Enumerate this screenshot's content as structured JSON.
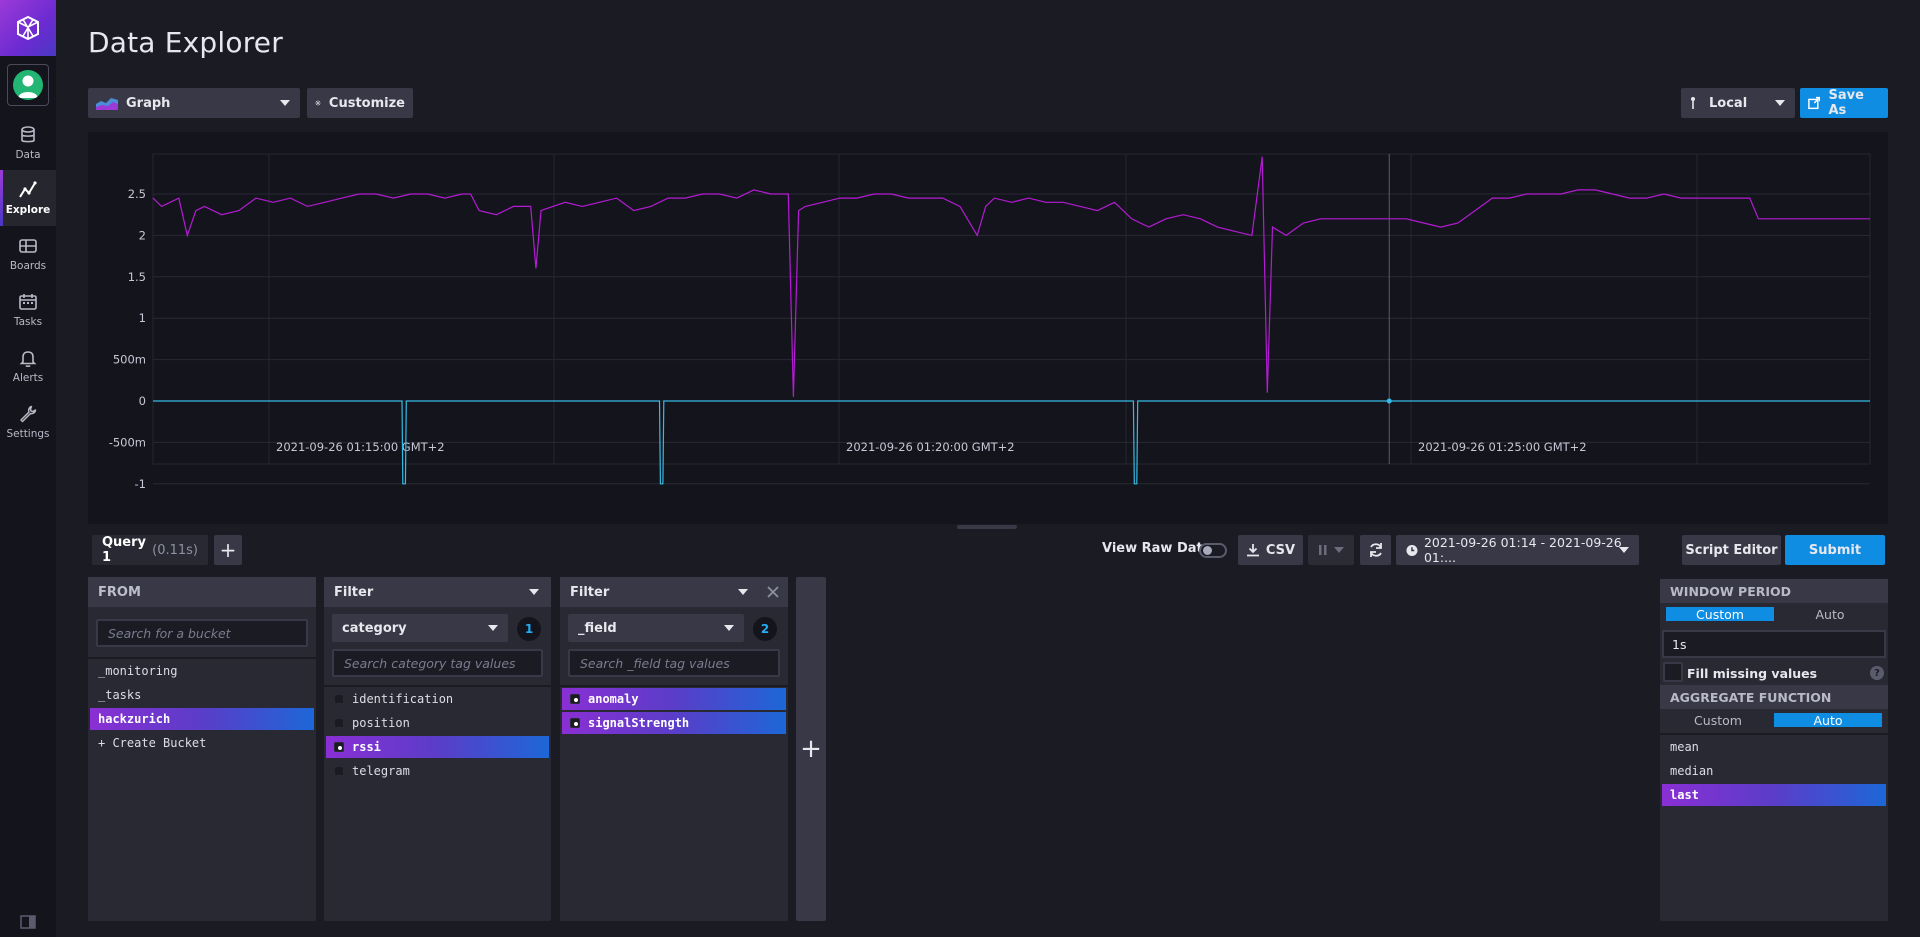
{
  "sidebar": {
    "items": [
      {
        "label": "Data",
        "icon": "database-icon"
      },
      {
        "label": "Explore",
        "icon": "graph-line-icon",
        "active": true
      },
      {
        "label": "Boards",
        "icon": "dashboard-grid-icon"
      },
      {
        "label": "Tasks",
        "icon": "calendar-icon"
      },
      {
        "label": "Alerts",
        "icon": "bell-icon"
      },
      {
        "label": "Settings",
        "icon": "wrench-icon"
      }
    ]
  },
  "header": {
    "title": "Data Explorer"
  },
  "toolbar": {
    "visualization": "Graph",
    "customize": "Customize",
    "timezone": "Local",
    "save_as": "Save As"
  },
  "chart_data": {
    "type": "line",
    "y_ticks": [
      "2.5",
      "2",
      "1.5",
      "1",
      "500m",
      "0",
      "-500m",
      "-1"
    ],
    "ylim": [
      -1,
      2.5
    ],
    "x_ticks": [
      "2021-09-26 01:15:00 GMT+2",
      "2021-09-26 01:20:00 GMT+2",
      "2021-09-26 01:25:00 GMT+2"
    ],
    "series": [
      {
        "color": "#b41bd4",
        "points": [
          [
            0,
            2.45
          ],
          [
            0.5,
            2.35
          ],
          [
            1,
            2.4
          ],
          [
            1.5,
            2.45
          ],
          [
            2,
            2.0
          ],
          [
            2.5,
            2.3
          ],
          [
            3,
            2.35
          ],
          [
            4,
            2.25
          ],
          [
            5,
            2.3
          ],
          [
            6,
            2.45
          ],
          [
            7,
            2.4
          ],
          [
            8,
            2.45
          ],
          [
            9,
            2.35
          ],
          [
            10,
            2.4
          ],
          [
            11,
            2.45
          ],
          [
            12,
            2.5
          ],
          [
            13,
            2.5
          ],
          [
            14,
            2.45
          ],
          [
            15,
            2.5
          ],
          [
            16,
            2.5
          ],
          [
            17,
            2.45
          ],
          [
            18,
            2.5
          ],
          [
            18.5,
            2.5
          ],
          [
            19,
            2.3
          ],
          [
            20,
            2.25
          ],
          [
            21,
            2.35
          ],
          [
            22,
            2.35
          ],
          [
            22.3,
            1.6
          ],
          [
            22.6,
            2.3
          ],
          [
            24,
            2.4
          ],
          [
            25,
            2.35
          ],
          [
            26,
            2.4
          ],
          [
            27,
            2.45
          ],
          [
            28,
            2.3
          ],
          [
            29,
            2.35
          ],
          [
            30,
            2.45
          ],
          [
            31,
            2.45
          ],
          [
            32,
            2.5
          ],
          [
            33,
            2.5
          ],
          [
            34,
            2.45
          ],
          [
            35,
            2.55
          ],
          [
            36,
            2.5
          ],
          [
            37,
            2.5
          ],
          [
            37.3,
            0.05
          ],
          [
            37.6,
            2.3
          ],
          [
            38,
            2.35
          ],
          [
            39,
            2.4
          ],
          [
            40,
            2.45
          ],
          [
            41,
            2.45
          ],
          [
            42,
            2.5
          ],
          [
            43,
            2.5
          ],
          [
            44,
            2.45
          ],
          [
            45,
            2.45
          ],
          [
            46,
            2.45
          ],
          [
            47,
            2.35
          ],
          [
            48,
            2.0
          ],
          [
            48.5,
            2.35
          ],
          [
            49,
            2.45
          ],
          [
            50,
            2.4
          ],
          [
            51,
            2.45
          ],
          [
            52,
            2.4
          ],
          [
            53,
            2.4
          ],
          [
            54,
            2.35
          ],
          [
            55,
            2.3
          ],
          [
            56,
            2.4
          ],
          [
            57,
            2.2
          ],
          [
            58,
            2.1
          ],
          [
            59,
            2.2
          ],
          [
            60,
            2.25
          ],
          [
            61,
            2.2
          ],
          [
            62,
            2.1
          ],
          [
            63,
            2.05
          ],
          [
            64,
            2.0
          ],
          [
            64.6,
            2.95
          ],
          [
            64.9,
            0.1
          ],
          [
            65.2,
            2.1
          ],
          [
            66,
            2.0
          ],
          [
            67,
            2.15
          ],
          [
            68,
            2.2
          ],
          [
            69,
            2.2
          ],
          [
            70,
            2.2
          ],
          [
            71,
            2.2
          ],
          [
            72,
            2.2
          ],
          [
            73,
            2.2
          ],
          [
            74,
            2.15
          ],
          [
            75,
            2.1
          ],
          [
            76,
            2.15
          ],
          [
            77,
            2.3
          ],
          [
            78,
            2.45
          ],
          [
            79,
            2.45
          ],
          [
            80,
            2.5
          ],
          [
            81,
            2.5
          ],
          [
            82,
            2.5
          ],
          [
            83,
            2.55
          ],
          [
            84,
            2.55
          ],
          [
            85,
            2.5
          ],
          [
            86,
            2.45
          ],
          [
            87,
            2.45
          ],
          [
            88,
            2.5
          ],
          [
            89,
            2.45
          ],
          [
            90,
            2.45
          ],
          [
            91,
            2.45
          ],
          [
            92,
            2.45
          ],
          [
            93,
            2.45
          ],
          [
            93.5,
            2.2
          ],
          [
            94,
            2.2
          ],
          [
            95,
            2.2
          ],
          [
            96,
            2.2
          ],
          [
            97,
            2.2
          ],
          [
            98,
            2.2
          ],
          [
            99,
            2.2
          ],
          [
            100,
            2.2
          ]
        ]
      },
      {
        "color": "#34bbe6",
        "points": [
          [
            0,
            0
          ],
          [
            14.5,
            0
          ],
          [
            14.55,
            -1
          ],
          [
            14.7,
            -1
          ],
          [
            14.75,
            0
          ],
          [
            29.5,
            0
          ],
          [
            29.55,
            -1
          ],
          [
            29.7,
            -1
          ],
          [
            29.75,
            0
          ],
          [
            57.1,
            0
          ],
          [
            57.15,
            -1
          ],
          [
            57.3,
            -1
          ],
          [
            57.35,
            0
          ],
          [
            100,
            0
          ]
        ]
      }
    ],
    "x_range": [
      0,
      100
    ]
  },
  "query": {
    "tab_name": "Query 1",
    "tab_time": "(0.11s)",
    "add_label": "+",
    "view_raw": "View Raw Data",
    "csv": "CSV",
    "time_range": "2021-09-26 01:14 - 2021-09-26 01:...",
    "script_editor": "Script Editor",
    "submit": "Submit"
  },
  "from_card": {
    "title": "FROM",
    "search_placeholder": "Search for a bucket",
    "buckets": [
      "_monitoring",
      "_tasks",
      "hackzurich",
      "+ Create Bucket"
    ],
    "selected": "hackzurich"
  },
  "filter1": {
    "title": "Filter",
    "tag_key": "category",
    "count": "1",
    "search_placeholder": "Search category tag values",
    "values": [
      "identification",
      "position",
      "rssi",
      "telegram"
    ],
    "selected": [
      "rssi"
    ]
  },
  "filter2": {
    "title": "Filter",
    "tag_key": "_field",
    "count": "2",
    "search_placeholder": "Search _field tag values",
    "values": [
      "anomaly",
      "signalStrength"
    ],
    "selected": [
      "anomaly",
      "signalStrength"
    ]
  },
  "aggregate": {
    "window_title": "WINDOW PERIOD",
    "window_custom": "Custom",
    "window_auto": "Auto",
    "period": "1s",
    "fill_missing": "Fill missing values",
    "help": "?",
    "function_title": "AGGREGATE FUNCTION",
    "fn_custom": "Custom",
    "fn_auto": "Auto",
    "functions": [
      "mean",
      "median",
      "last"
    ],
    "selected": "last"
  },
  "colors": {
    "accent": "#0f8de3",
    "purple": "#8a2fd4",
    "series1": "#b41bd4",
    "series2": "#34bbe6"
  }
}
